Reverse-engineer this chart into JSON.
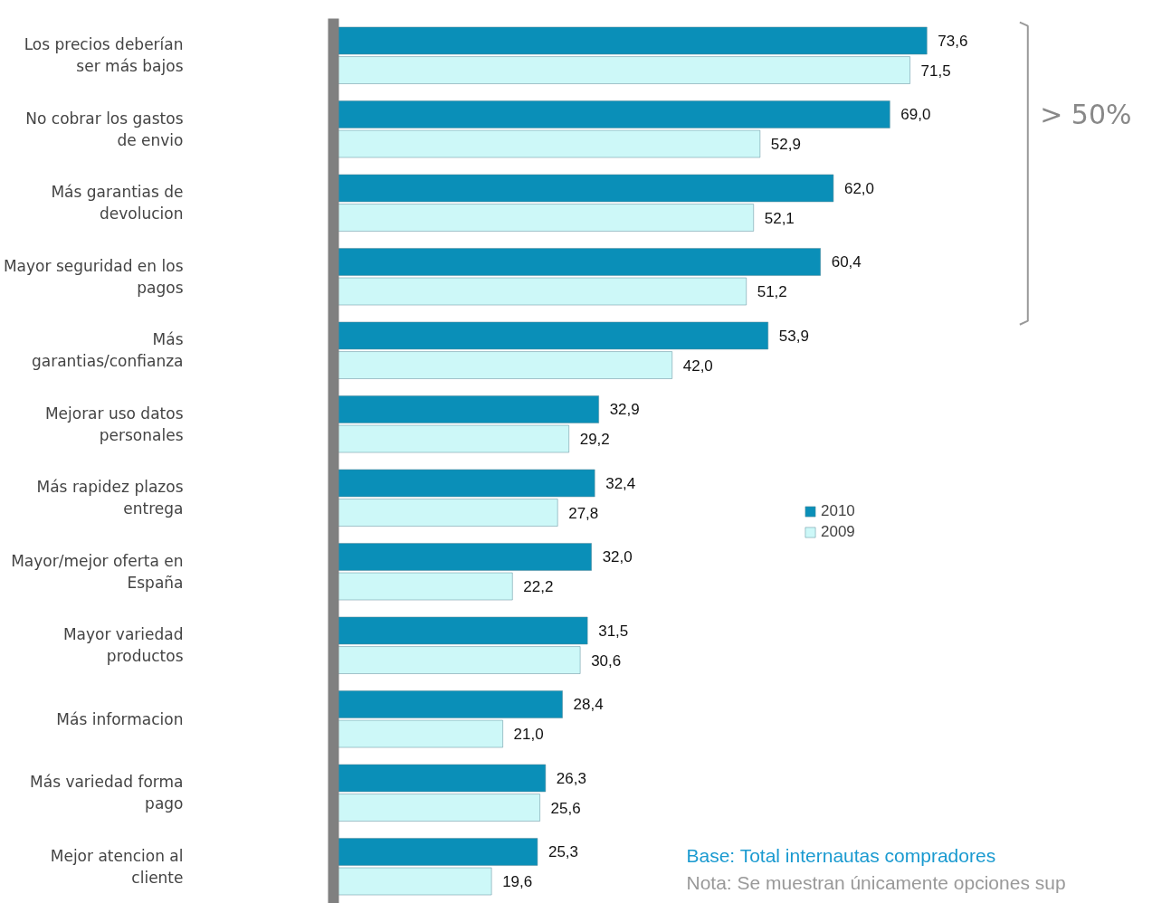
{
  "chart_data": {
    "type": "bar",
    "orientation": "horizontal",
    "categories": [
      "Los precios deberían ser más bajos",
      "No cobrar los gastos de envio",
      "Más garantias de devolucion",
      "Mayor seguridad en los pagos",
      "Más garantias/confianza",
      "Mejorar uso datos personales",
      "Más rapidez plazos entrega",
      "Mayor/mejor oferta en España",
      "Mayor variedad productos",
      "Más informacion",
      "Más variedad forma pago",
      "Mejor atencion al cliente"
    ],
    "series": [
      {
        "name": "2010",
        "color": "#0a8fb8",
        "values": [
          73.6,
          69.0,
          62.0,
          60.4,
          53.9,
          32.9,
          32.4,
          32.0,
          31.5,
          28.4,
          26.3,
          25.3
        ],
        "value_labels": [
          "73,6",
          "69,0",
          "62,0",
          "60,4",
          "53,9",
          "32,9",
          "32,4",
          "32,0",
          "31,5",
          "28,4",
          "26,3",
          "25,3"
        ]
      },
      {
        "name": "2009",
        "color": "#cdf8f8",
        "values": [
          71.5,
          52.9,
          52.1,
          51.2,
          42.0,
          29.2,
          27.8,
          22.2,
          30.6,
          21.0,
          25.6,
          19.6
        ],
        "value_labels": [
          "71,5",
          "52,9",
          "52,1",
          "51,2",
          "42,0",
          "29,2",
          "27,8",
          "22,2",
          "30,6",
          "21,0",
          "25,6",
          "19,6"
        ]
      }
    ],
    "legend": "right",
    "grid": false,
    "annotations": [
      "> 50%",
      "Base: Total internautas compradores",
      "Nota: Se muestran únicamente opciones sup"
    ]
  }
}
